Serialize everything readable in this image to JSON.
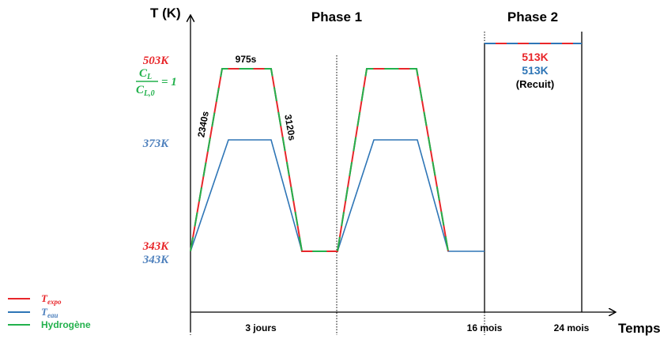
{
  "axes": {
    "y_label": "T (K)",
    "x_label": "Temps"
  },
  "phases": {
    "phase1": "Phase 1",
    "phase2": "Phase 2"
  },
  "y_annotations": {
    "t503": "503K",
    "cl_num": "C",
    "cl_num_sub": "L",
    "cl_den": "C",
    "cl_den_sub": "L,0",
    "cl_eq": "= 1",
    "t373": "373K",
    "t343_red": "343K",
    "t343_blue": "343K"
  },
  "segment_labels": {
    "plateau_duration": "975s",
    "ramp_up_duration": "2340s",
    "ramp_down_duration": "3120s"
  },
  "phase2_labels": {
    "red": "513K",
    "blue": "513K",
    "note": "(Recuit)"
  },
  "x_ticks": {
    "t1": "3 jours",
    "t2": "16 mois",
    "t3": "24 mois"
  },
  "legend": {
    "expo_main": "T",
    "expo_sub": "expo",
    "eau_main": "T",
    "eau_sub": "eau",
    "hydrogen": "Hydrogène"
  },
  "colors": {
    "red": "#e8262a",
    "blue": "#2e75b6",
    "green": "#22b14c",
    "black": "#000000",
    "label_red": "#e8262a",
    "label_blue": "#4f81bd",
    "label_green": "#22b14c"
  }
}
